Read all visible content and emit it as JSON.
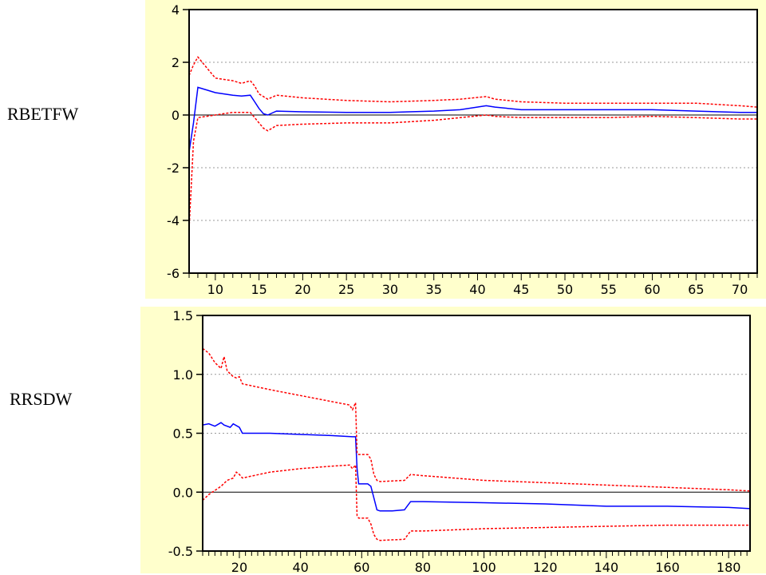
{
  "chart_data": [
    {
      "type": "line",
      "side_label": "RBETFW",
      "background": "#FFFFCC",
      "xlim": [
        7,
        72
      ],
      "ylim": [
        -6,
        4
      ],
      "yticks": [
        "4",
        "2",
        "0",
        "-2",
        "-4",
        "-6"
      ],
      "xticks": [
        "10",
        "15",
        "20",
        "25",
        "30",
        "35",
        "40",
        "45",
        "50",
        "55",
        "60",
        "65",
        "70"
      ],
      "grid": true,
      "series": [
        {
          "color": "#0000FF",
          "style": "solid",
          "x": [
            7,
            7.5,
            8,
            9,
            10,
            11,
            12,
            13,
            14,
            14.5,
            15,
            15.5,
            16,
            17,
            20,
            25,
            30,
            35,
            38,
            41,
            42,
            45,
            50,
            55,
            60,
            65,
            70,
            72
          ],
          "y": [
            -1.4,
            -0.3,
            1.05,
            0.95,
            0.85,
            0.8,
            0.75,
            0.72,
            0.75,
            0.5,
            0.25,
            0.05,
            0.0,
            0.15,
            0.12,
            0.1,
            0.1,
            0.15,
            0.2,
            0.35,
            0.3,
            0.2,
            0.2,
            0.2,
            0.2,
            0.15,
            0.1,
            0.1
          ]
        },
        {
          "color": "#FF0000",
          "style": "dashed",
          "x": [
            7,
            7.5,
            8,
            9,
            10,
            11,
            12,
            13,
            14,
            14.5,
            15,
            16,
            17,
            20,
            25,
            30,
            35,
            38,
            41,
            42,
            45,
            50,
            55,
            60,
            65,
            70,
            72
          ],
          "y": [
            1.5,
            1.9,
            2.2,
            1.8,
            1.4,
            1.35,
            1.3,
            1.2,
            1.3,
            1.1,
            0.8,
            0.6,
            0.75,
            0.65,
            0.55,
            0.5,
            0.55,
            0.6,
            0.7,
            0.6,
            0.5,
            0.45,
            0.45,
            0.45,
            0.45,
            0.35,
            0.3
          ]
        },
        {
          "color": "#FF0000",
          "style": "dashed",
          "x": [
            7,
            7.5,
            8,
            9,
            10,
            11,
            12,
            13,
            14,
            14.5,
            15,
            15.5,
            16,
            17,
            20,
            25,
            30,
            35,
            38,
            41,
            42,
            45,
            50,
            55,
            60,
            65,
            70,
            72
          ],
          "y": [
            -4.3,
            -1.0,
            -0.1,
            -0.05,
            0.0,
            0.05,
            0.1,
            0.1,
            0.1,
            -0.1,
            -0.3,
            -0.5,
            -0.6,
            -0.4,
            -0.35,
            -0.3,
            -0.3,
            -0.2,
            -0.1,
            0.0,
            -0.05,
            -0.1,
            -0.1,
            -0.1,
            -0.05,
            -0.1,
            -0.15,
            -0.15
          ]
        }
      ]
    },
    {
      "type": "line",
      "side_label": "RRSDW",
      "background": "#FFFFCC",
      "xlim": [
        8,
        187
      ],
      "ylim": [
        -0.5,
        1.5
      ],
      "yticks": [
        "1.5",
        "1.0",
        "0.5",
        "0.0",
        "-0.5"
      ],
      "xticks": [
        "20",
        "40",
        "60",
        "80",
        "100",
        "120",
        "140",
        "160",
        "180"
      ],
      "grid": true,
      "series": [
        {
          "color": "#0000FF",
          "style": "solid",
          "x": [
            8,
            10,
            12,
            14,
            15,
            17,
            18,
            20,
            21,
            30,
            40,
            50,
            57,
            58,
            58.5,
            59,
            60,
            62,
            63,
            64,
            65,
            66,
            70,
            74,
            76,
            80,
            100,
            120,
            140,
            160,
            180,
            187
          ],
          "y": [
            0.57,
            0.58,
            0.56,
            0.59,
            0.57,
            0.55,
            0.58,
            0.55,
            0.5,
            0.5,
            0.49,
            0.48,
            0.47,
            0.47,
            0.2,
            0.07,
            0.07,
            0.07,
            0.05,
            -0.05,
            -0.15,
            -0.16,
            -0.16,
            -0.15,
            -0.08,
            -0.08,
            -0.09,
            -0.1,
            -0.12,
            -0.12,
            -0.13,
            -0.14
          ]
        },
        {
          "color": "#FF0000",
          "style": "dashed",
          "x": [
            8,
            10,
            12,
            14,
            15,
            16,
            18,
            19,
            20,
            21,
            30,
            40,
            50,
            56,
            57,
            58,
            58.5,
            59,
            62,
            63,
            64,
            65,
            66,
            74,
            76,
            80,
            100,
            120,
            140,
            160,
            180,
            187
          ],
          "y": [
            1.22,
            1.18,
            1.1,
            1.05,
            1.15,
            1.03,
            0.98,
            0.97,
            0.98,
            0.92,
            0.87,
            0.82,
            0.77,
            0.74,
            0.7,
            0.76,
            0.33,
            0.32,
            0.32,
            0.28,
            0.15,
            0.1,
            0.09,
            0.1,
            0.15,
            0.14,
            0.1,
            0.08,
            0.06,
            0.04,
            0.02,
            0.01
          ]
        },
        {
          "color": "#FF0000",
          "style": "dashed",
          "x": [
            8,
            10,
            14,
            16,
            18,
            19,
            20,
            21,
            30,
            40,
            50,
            56,
            57,
            58,
            58.5,
            59,
            62,
            63,
            64,
            65,
            66,
            74,
            76,
            80,
            100,
            120,
            140,
            160,
            180,
            187
          ],
          "y": [
            -0.07,
            -0.02,
            0.05,
            0.1,
            0.12,
            0.17,
            0.15,
            0.12,
            0.17,
            0.2,
            0.22,
            0.23,
            0.2,
            0.23,
            -0.2,
            -0.22,
            -0.22,
            -0.27,
            -0.36,
            -0.4,
            -0.41,
            -0.4,
            -0.33,
            -0.33,
            -0.31,
            -0.3,
            -0.29,
            -0.28,
            -0.28,
            -0.28
          ]
        }
      ]
    }
  ]
}
